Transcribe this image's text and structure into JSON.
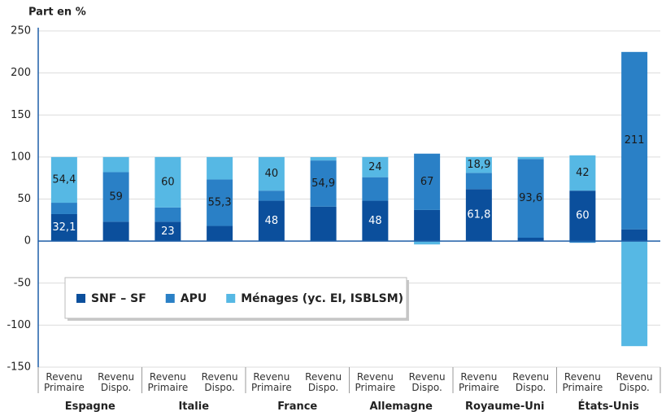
{
  "chart_data": {
    "type": "stacked_bar",
    "y_label": "Part en %",
    "groups": [
      "Espagne",
      "Italie",
      "France",
      "Allemagne",
      "Royaume-Uni",
      "États-Unis"
    ],
    "categories": [
      "Revenu Primaire",
      "Revenu Dispo.",
      "Revenu Primaire",
      "Revenu Dispo.",
      "Revenu Primaire",
      "Revenu Dispo.",
      "Revenu Primaire",
      "Revenu Dispo.",
      "Revenu Primaire",
      "Revenu Dispo.",
      "Revenu Primaire",
      "Revenu Dispo."
    ],
    "series": [
      {
        "name": "SNF – SF",
        "color": "#0b4f9c",
        "label_color": "#ffffff",
        "values": [
          32.1,
          23,
          23,
          18,
          48,
          41,
          48,
          37,
          61.8,
          4,
          60,
          14
        ],
        "value_labels": [
          "32,1",
          null,
          "23",
          null,
          "48",
          null,
          "48",
          null,
          "61,8",
          null,
          "60",
          null
        ]
      },
      {
        "name": "APU",
        "color": "#2a80c6",
        "label_color": "#1a1a1a",
        "values": [
          13.5,
          59,
          17,
          55.3,
          12,
          54.9,
          28,
          67,
          19.3,
          93.6,
          -2,
          211
        ],
        "value_labels": [
          null,
          "59",
          null,
          "55,3",
          null,
          "54,9",
          null,
          "67",
          null,
          "93,6",
          null,
          "211"
        ]
      },
      {
        "name": "Ménages (yc. EI, ISBLSM)",
        "color": "#56b8e4",
        "label_color": "#1a1a1a",
        "values": [
          54.4,
          18,
          60,
          26.7,
          40,
          4,
          24,
          -4,
          18.9,
          2.4,
          42,
          -125
        ],
        "value_labels": [
          "54,4",
          null,
          "60",
          null,
          "40",
          null,
          "24",
          null,
          "18,9",
          null,
          "42",
          null
        ]
      }
    ],
    "ylim": [
      -150,
      250
    ],
    "yticks": [
      -150,
      -100,
      -50,
      0,
      50,
      100,
      150,
      200,
      250
    ],
    "grid": true,
    "legend": "lower left"
  }
}
